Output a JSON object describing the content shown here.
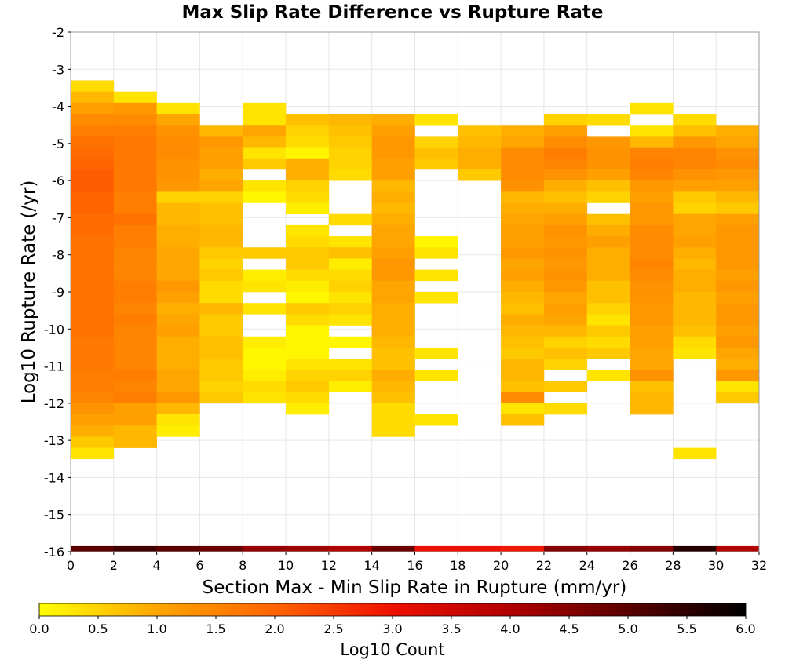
{
  "chart_data": {
    "type": "heatmap",
    "title": "Max Slip Rate Difference vs Rupture Rate",
    "xlabel": "Section Max - Min Slip Rate in Rupture (mm/yr)",
    "ylabel": "Log10 Rupture Rate (/yr)",
    "xlim": [
      0,
      32
    ],
    "ylim": [
      -16,
      -2
    ],
    "x_ticks": [
      "0",
      "2",
      "4",
      "6",
      "8",
      "10",
      "12",
      "14",
      "16",
      "18",
      "20",
      "22",
      "24",
      "26",
      "28",
      "30",
      "32"
    ],
    "y_ticks": [
      "-2",
      "-3",
      "-4",
      "-5",
      "-6",
      "-7",
      "-8",
      "-9",
      "-10",
      "-11",
      "-12",
      "-13",
      "-14",
      "-15",
      "-16"
    ],
    "x_bin_width": 2,
    "y_bin_height": 0.3,
    "grid": true,
    "colorbar": {
      "label": "Log10 Count",
      "range": [
        0.0,
        6.0
      ],
      "ticks": [
        "0.0",
        "0.5",
        "1.0",
        "1.5",
        "2.0",
        "2.5",
        "3.0",
        "3.5",
        "4.0",
        "4.5",
        "5.0",
        "5.5",
        "6.0"
      ],
      "colors": [
        "#ffff00",
        "#ffa500",
        "#ff6400",
        "#ee1000",
        "#b00000",
        "#5a0000",
        "#000000"
      ]
    },
    "columns": [
      {
        "x": 1,
        "y_top": -3.3,
        "values": [
          0.4,
          0.8,
          1.1,
          1.4,
          1.6,
          1.8,
          1.9,
          2.0,
          2.1,
          2.1,
          2.0,
          2.0,
          1.9,
          1.9,
          1.8,
          1.8,
          1.8,
          1.8,
          1.8,
          1.8,
          1.8,
          1.8,
          1.8,
          1.7,
          1.7,
          1.7,
          1.6,
          1.6,
          1.5,
          1.3,
          1.1,
          0.9,
          0.6,
          0.3
        ]
      },
      {
        "x": 3,
        "y_top": -3.6,
        "values": [
          0.3,
          1.2,
          1.4,
          1.6,
          1.7,
          1.7,
          1.7,
          1.7,
          1.7,
          1.6,
          1.6,
          1.8,
          1.6,
          1.6,
          1.5,
          1.5,
          1.5,
          1.6,
          1.6,
          1.5,
          1.6,
          1.5,
          1.5,
          1.5,
          1.5,
          1.6,
          1.5,
          1.6,
          1.1,
          1.1,
          0.8,
          0.8
        ]
      },
      {
        "x": 5,
        "y_top": -3.9,
        "values": [
          0.3,
          1.0,
          1.3,
          1.4,
          1.4,
          1.3,
          1.3,
          1.2,
          0.5,
          0.8,
          0.8,
          0.9,
          0.9,
          1.0,
          1.0,
          1.0,
          1.2,
          1.1,
          0.9,
          1.0,
          1.1,
          0.9,
          0.9,
          0.9,
          1.0,
          1.0,
          1.2,
          0.8,
          0.3,
          0.2
        ]
      },
      {
        "x": 7,
        "y_top": -4.5,
        "values": [
          0.8,
          1.2,
          1.1,
          1.1,
          0.9,
          1.0,
          0.5,
          0.7,
          0.7,
          0.8,
          0.8,
          0.6,
          0.5,
          0.6,
          0.4,
          0.4,
          0.8,
          0.6,
          0.6,
          0.7,
          0.7,
          0.6,
          0.6,
          0.5,
          0.6
        ]
      },
      {
        "x": 9,
        "y_top": -3.9,
        "values": [
          0.3,
          0.3,
          1.0,
          0.8,
          0.3,
          0.6,
          null,
          0.3,
          0.1,
          null,
          null,
          null,
          null,
          0.6,
          null,
          0.2,
          0.3,
          null,
          0.3,
          null,
          null,
          0.2,
          0.1,
          0.1,
          0.2,
          0.4,
          0.3
        ]
      },
      {
        "x": 11,
        "y_top": -4.2,
        "values": [
          0.7,
          0.5,
          0.4,
          0.1,
          0.9,
          0.9,
          0.5,
          0.4,
          0.2,
          null,
          0.3,
          0.4,
          0.6,
          0.6,
          0.4,
          0.2,
          0.1,
          0.6,
          0.4,
          0.1,
          0.1,
          0.1,
          0.3,
          0.5,
          0.6,
          0.4,
          0.2
        ]
      },
      {
        "x": 13,
        "y_top": -4.2,
        "values": [
          0.8,
          0.7,
          0.6,
          0.5,
          0.5,
          0.4,
          null,
          null,
          null,
          0.4,
          null,
          0.3,
          0.7,
          0.2,
          0.4,
          0.5,
          0.3,
          0.5,
          0.3,
          null,
          0.1,
          null,
          0.3,
          0.5,
          0.2
        ]
      },
      {
        "x": 15,
        "y_top": -4.2,
        "values": [
          0.9,
          1.1,
          1.2,
          1.2,
          1.1,
          1.1,
          0.8,
          0.9,
          0.8,
          0.9,
          1.0,
          1.0,
          1.1,
          1.2,
          1.2,
          1.0,
          1.0,
          0.9,
          0.9,
          0.9,
          0.8,
          0.7,
          0.7,
          0.9,
          0.8,
          0.7,
          0.4,
          0.4,
          0.4
        ]
      },
      {
        "x": 17,
        "y_top": -4.2,
        "values": [
          0.3,
          null,
          0.5,
          0.7,
          0.6,
          null,
          null,
          null,
          null,
          null,
          null,
          0.1,
          0.3,
          null,
          0.3,
          null,
          0.3,
          null,
          null,
          null,
          null,
          0.3,
          null,
          0.3,
          null,
          null,
          null,
          0.3
        ]
      },
      {
        "x": 19,
        "y_top": -4.5,
        "values": [
          0.7,
          0.8,
          0.9,
          0.9,
          0.6
        ]
      },
      {
        "x": 21,
        "y_top": -4.5,
        "values": [
          0.9,
          1.0,
          1.4,
          1.4,
          1.4,
          1.3,
          0.8,
          0.9,
          1.0,
          1.1,
          1.1,
          1.2,
          1.0,
          1.1,
          0.9,
          0.8,
          0.7,
          0.9,
          0.8,
          0.7,
          0.6,
          0.8,
          0.8,
          0.7,
          1.4,
          0.3,
          0.7
        ]
      },
      {
        "x": 23,
        "y_top": -4.2,
        "values": [
          0.5,
          1.1,
          1.4,
          1.6,
          1.5,
          1.3,
          0.9,
          0.7,
          0.9,
          1.1,
          1.3,
          1.2,
          1.3,
          1.2,
          1.3,
          1.2,
          1.0,
          1.1,
          1.0,
          0.8,
          0.5,
          0.7,
          0.5,
          null,
          0.6,
          null,
          0.4
        ]
      },
      {
        "x": 25,
        "y_top": -4.2,
        "values": [
          0.4,
          null,
          1.2,
          1.3,
          1.3,
          1.1,
          0.7,
          0.5,
          null,
          0.7,
          0.9,
          1.1,
          0.9,
          0.9,
          0.9,
          0.7,
          0.7,
          0.5,
          0.3,
          0.6,
          0.4,
          0.6,
          null,
          0.3
        ]
      },
      {
        "x": 27,
        "y_top": -3.9,
        "values": [
          0.3,
          null,
          0.3,
          0.8,
          1.5,
          1.6,
          1.5,
          1.2,
          1.1,
          1.2,
          1.2,
          1.4,
          1.4,
          1.4,
          1.5,
          1.4,
          1.3,
          1.3,
          1.2,
          1.2,
          1.1,
          1.1,
          1.0,
          1.0,
          1.3,
          0.7,
          0.8,
          0.8
        ]
      },
      {
        "x": 29,
        "y_top": -4.2,
        "values": [
          0.4,
          0.7,
          1.2,
          1.5,
          1.5,
          1.3,
          1.1,
          0.6,
          0.5,
          1.0,
          1.0,
          1.1,
          0.9,
          0.8,
          0.9,
          0.9,
          0.8,
          0.8,
          0.8,
          0.7,
          0.4,
          0.3,
          null,
          null,
          null,
          null,
          null,
          null,
          null,
          null,
          0.3
        ]
      },
      {
        "x": 31,
        "y_top": -4.5,
        "values": [
          0.9,
          1.0,
          1.3,
          1.4,
          1.2,
          1.1,
          0.8,
          0.6,
          1.1,
          1.2,
          1.2,
          1.2,
          1.2,
          1.1,
          1.2,
          1.1,
          1.2,
          1.2,
          1.1,
          1.2,
          1.0,
          0.9,
          1.2,
          0.3,
          0.6
        ]
      }
    ],
    "bottom_row": {
      "y": -16.0,
      "values": [
        5.0,
        5.3,
        5.0,
        4.8,
        4.3,
        4.2,
        4.0,
        4.8,
        3.0,
        3.0,
        2.9,
        4.5,
        4.3,
        4.5,
        5.6,
        4.0
      ]
    }
  }
}
